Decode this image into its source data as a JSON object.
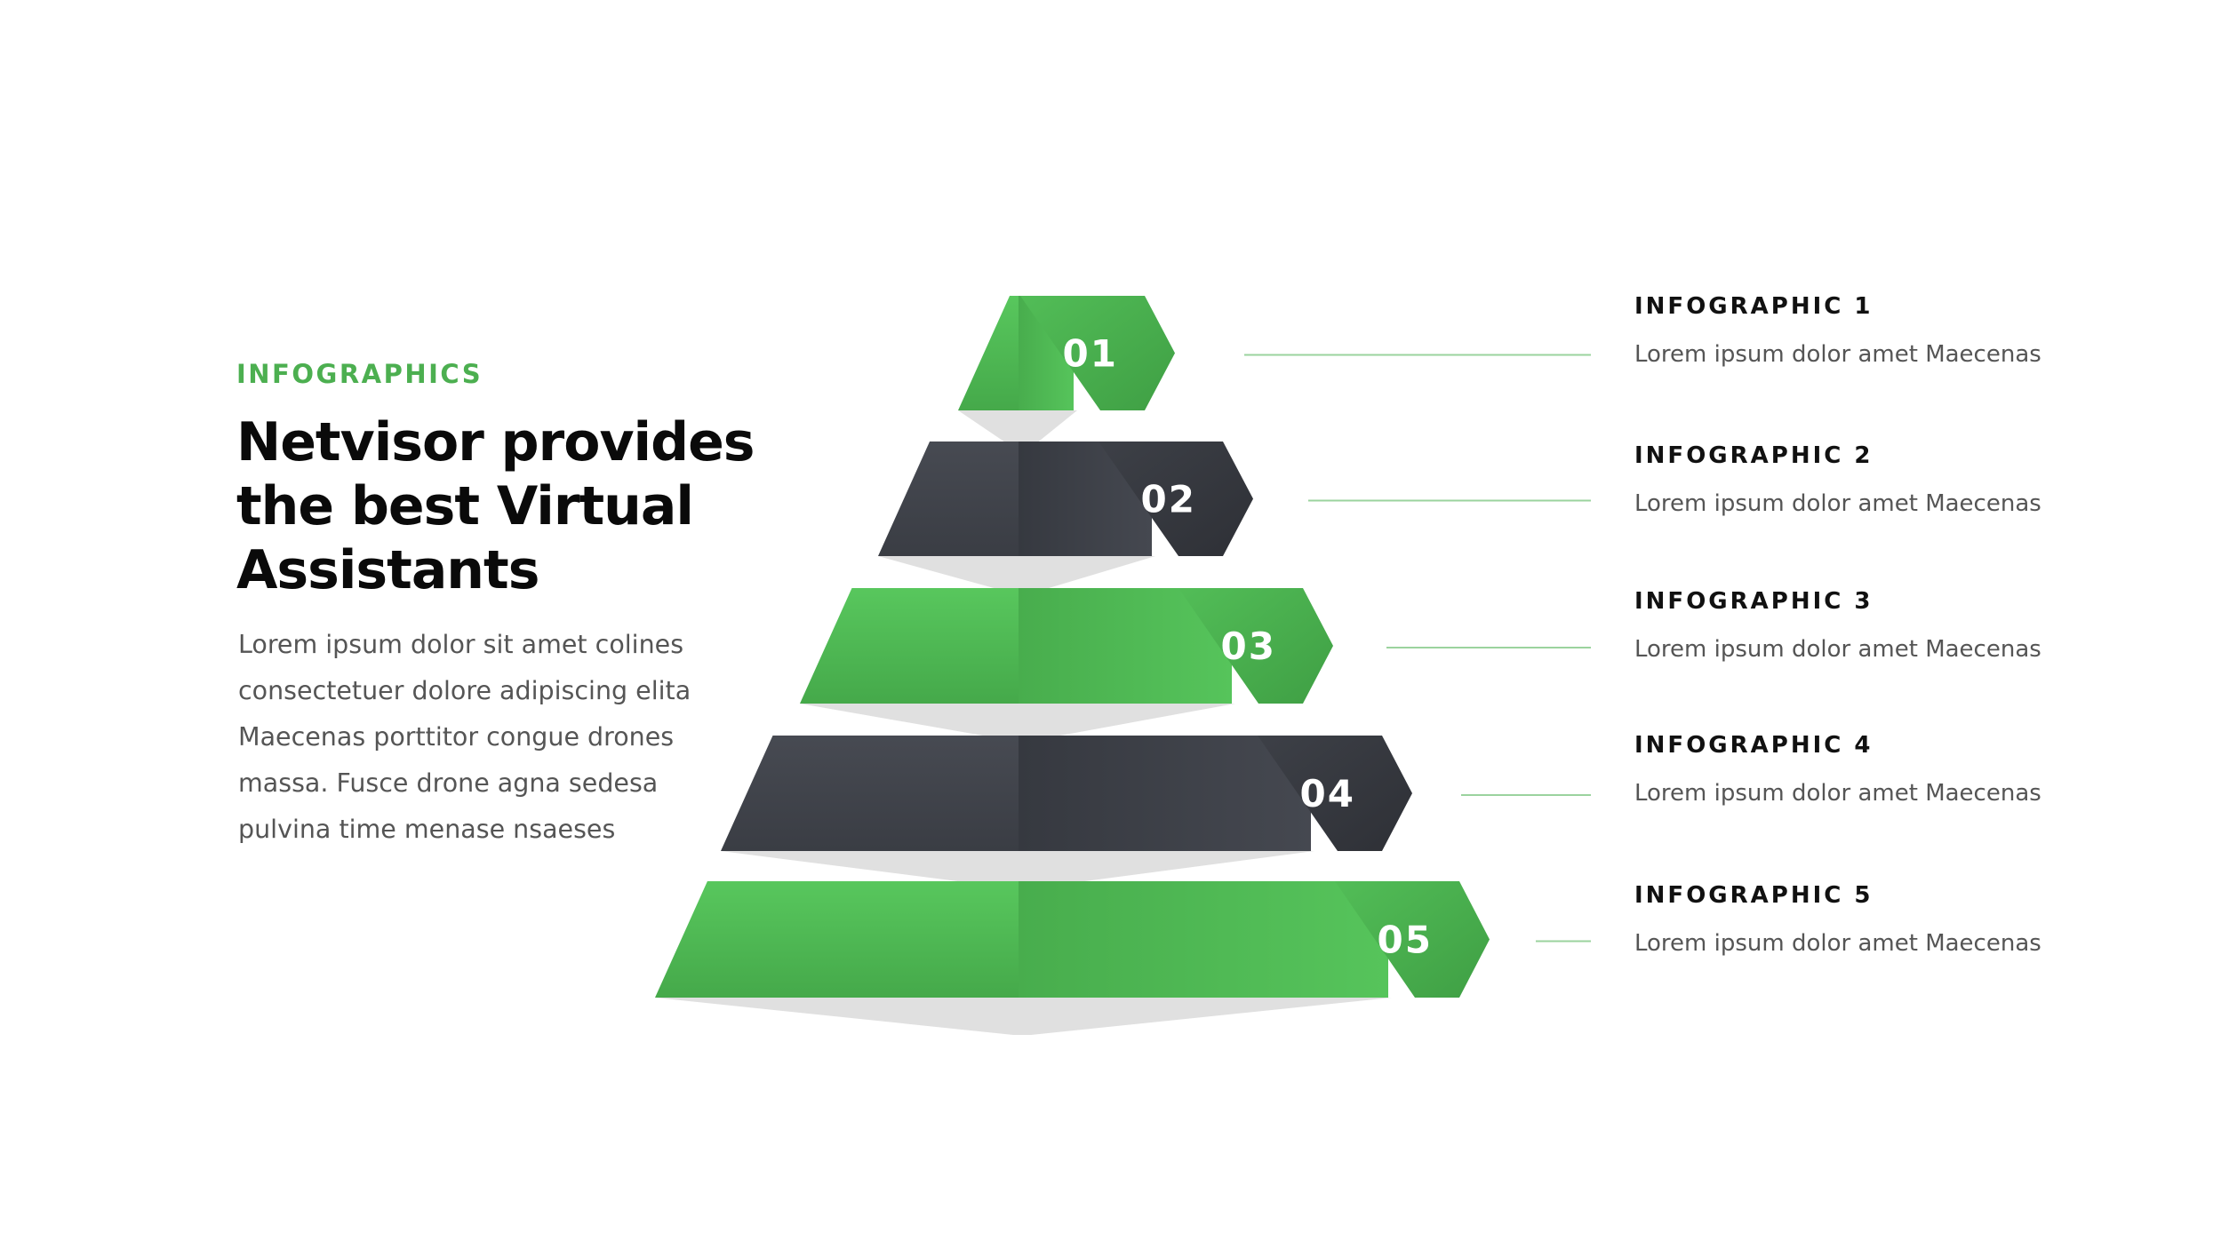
{
  "header": {
    "eyebrow": "INFOGRAPHICS",
    "title": "Netvisor provides the best Virtual Assistants",
    "description": "Lorem ipsum dolor sit amet colines consectetuer dolore adipiscing elita Maecenas porttitor congue drones massa. Fusce drone agna sedesa pulvina time menase nsaeses"
  },
  "colors": {
    "accent_green": "#4caf50",
    "green_light": "#55c35a",
    "green_dark": "#3e9b43",
    "slate": "#40434b",
    "slate_dark": "#33363d",
    "shadow": "#dedede",
    "connector": "#9bd39e"
  },
  "levels": [
    {
      "number": "01",
      "title": "INFOGRAPHIC 1",
      "text": "Lorem ipsum dolor amet Maecenas",
      "tone": "green"
    },
    {
      "number": "02",
      "title": "INFOGRAPHIC 2",
      "text": "Lorem ipsum dolor amet Maecenas",
      "tone": "slate"
    },
    {
      "number": "03",
      "title": "INFOGRAPHIC 3",
      "text": "Lorem ipsum dolor amet Maecenas",
      "tone": "green"
    },
    {
      "number": "04",
      "title": "INFOGRAPHIC 4",
      "text": "Lorem ipsum dolor amet Maecenas",
      "tone": "slate"
    },
    {
      "number": "05",
      "title": "INFOGRAPHIC 5",
      "text": "Lorem ipsum dolor amet Maecenas",
      "tone": "green"
    }
  ]
}
